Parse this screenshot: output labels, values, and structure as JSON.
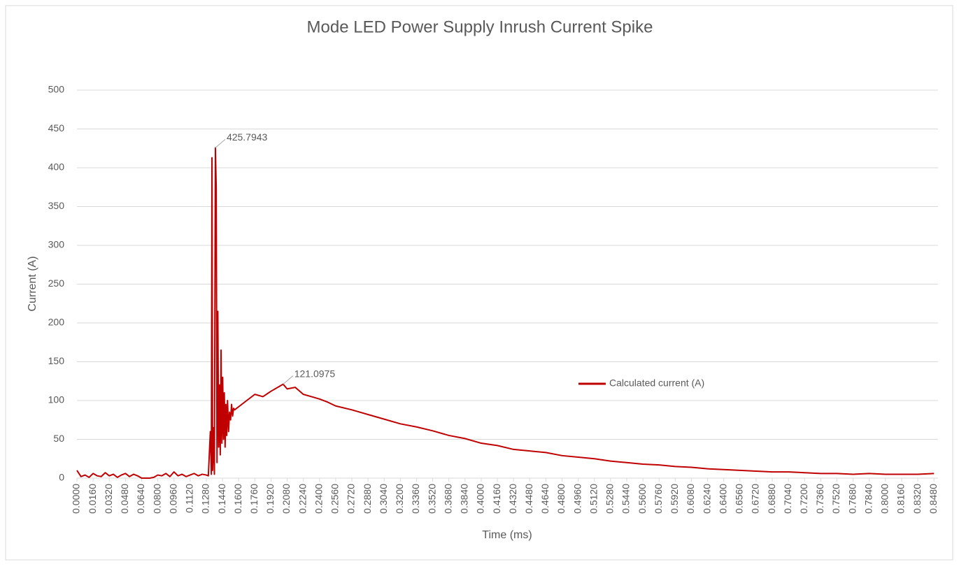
{
  "chart_data": {
    "type": "line",
    "title": "Mode LED Power Supply Inrush Current Spike",
    "x_label": "Time (ms)",
    "y_label": "Current (A)",
    "xlim": [
      0,
      0.852
    ],
    "ylim": [
      0,
      500
    ],
    "yticks": [
      0,
      50,
      100,
      150,
      200,
      250,
      300,
      350,
      400,
      450,
      500
    ],
    "xticks": [
      {
        "value": 0,
        "label": "0.0000"
      },
      {
        "value": 0.016,
        "label": "0.0160"
      },
      {
        "value": 0.032,
        "label": "0.0320"
      },
      {
        "value": 0.048,
        "label": "0.0480"
      },
      {
        "value": 0.064,
        "label": "0.0640"
      },
      {
        "value": 0.08,
        "label": "0.0800"
      },
      {
        "value": 0.096,
        "label": "0.0960"
      },
      {
        "value": 0.112,
        "label": "0.1120"
      },
      {
        "value": 0.128,
        "label": "0.1280"
      },
      {
        "value": 0.144,
        "label": "0.1440"
      },
      {
        "value": 0.16,
        "label": "0.1600"
      },
      {
        "value": 0.176,
        "label": "0.1760"
      },
      {
        "value": 0.192,
        "label": "0.1920"
      },
      {
        "value": 0.208,
        "label": "0.2080"
      },
      {
        "value": 0.224,
        "label": "0.2240"
      },
      {
        "value": 0.24,
        "label": "0.2400"
      },
      {
        "value": 0.256,
        "label": "0.2560"
      },
      {
        "value": 0.272,
        "label": "0.2720"
      },
      {
        "value": 0.288,
        "label": "0.2880"
      },
      {
        "value": 0.304,
        "label": "0.3040"
      },
      {
        "value": 0.32,
        "label": "0.3200"
      },
      {
        "value": 0.336,
        "label": "0.3360"
      },
      {
        "value": 0.352,
        "label": "0.3520"
      },
      {
        "value": 0.368,
        "label": "0.3680"
      },
      {
        "value": 0.384,
        "label": "0.3840"
      },
      {
        "value": 0.4,
        "label": "0.4000"
      },
      {
        "value": 0.416,
        "label": "0.4160"
      },
      {
        "value": 0.432,
        "label": "0.4320"
      },
      {
        "value": 0.448,
        "label": "0.4480"
      },
      {
        "value": 0.464,
        "label": "0.4640"
      },
      {
        "value": 0.48,
        "label": "0.4800"
      },
      {
        "value": 0.496,
        "label": "0.4960"
      },
      {
        "value": 0.512,
        "label": "0.5120"
      },
      {
        "value": 0.528,
        "label": "0.5280"
      },
      {
        "value": 0.544,
        "label": "0.5440"
      },
      {
        "value": 0.56,
        "label": "0.5600"
      },
      {
        "value": 0.576,
        "label": "0.5760"
      },
      {
        "value": 0.592,
        "label": "0.5920"
      },
      {
        "value": 0.608,
        "label": "0.6080"
      },
      {
        "value": 0.624,
        "label": "0.6240"
      },
      {
        "value": 0.64,
        "label": "0.6400"
      },
      {
        "value": 0.656,
        "label": "0.6560"
      },
      {
        "value": 0.672,
        "label": "0.6720"
      },
      {
        "value": 0.688,
        "label": "0.6880"
      },
      {
        "value": 0.704,
        "label": "0.7040"
      },
      {
        "value": 0.72,
        "label": "0.7200"
      },
      {
        "value": 0.736,
        "label": "0.7360"
      },
      {
        "value": 0.752,
        "label": "0.7520"
      },
      {
        "value": 0.768,
        "label": "0.7680"
      },
      {
        "value": 0.784,
        "label": "0.7840"
      },
      {
        "value": 0.8,
        "label": "0.8000"
      },
      {
        "value": 0.816,
        "label": "0.8160"
      },
      {
        "value": 0.832,
        "label": "0.8320"
      },
      {
        "value": 0.848,
        "label": "0.8480"
      }
    ],
    "grid": true,
    "legend": "right",
    "x": [
      0,
      0.004,
      0.008,
      0.012,
      0.016,
      0.02,
      0.024,
      0.028,
      0.032,
      0.036,
      0.04,
      0.044,
      0.048,
      0.052,
      0.056,
      0.06,
      0.064,
      0.068,
      0.072,
      0.076,
      0.08,
      0.084,
      0.088,
      0.092,
      0.096,
      0.1,
      0.104,
      0.108,
      0.112,
      0.116,
      0.12,
      0.124,
      0.128,
      0.13,
      0.132,
      0.133,
      0.1336,
      0.1342,
      0.135,
      0.136,
      0.137,
      0.1378,
      0.1386,
      0.1394,
      0.1402,
      0.141,
      0.1418,
      0.1426,
      0.1434,
      0.1442,
      0.145,
      0.1458,
      0.1466,
      0.1474,
      0.1482,
      0.149,
      0.15,
      0.151,
      0.152,
      0.153,
      0.154,
      0.155,
      0.156,
      0.16,
      0.168,
      0.176,
      0.184,
      0.192,
      0.2,
      0.204,
      0.208,
      0.216,
      0.224,
      0.232,
      0.24,
      0.248,
      0.256,
      0.272,
      0.288,
      0.304,
      0.32,
      0.336,
      0.352,
      0.368,
      0.384,
      0.4,
      0.416,
      0.432,
      0.448,
      0.464,
      0.48,
      0.496,
      0.512,
      0.528,
      0.544,
      0.56,
      0.576,
      0.592,
      0.608,
      0.624,
      0.64,
      0.656,
      0.672,
      0.688,
      0.704,
      0.72,
      0.736,
      0.752,
      0.768,
      0.784,
      0.8,
      0.816,
      0.832,
      0.848
    ],
    "series": [
      {
        "name": "Calculated current (A)",
        "color": "#c00000",
        "values": [
          10,
          2,
          4,
          1,
          6,
          3,
          2,
          7,
          3,
          5,
          1,
          4,
          6,
          2,
          5,
          3,
          0,
          0,
          0,
          1,
          4,
          3,
          6,
          2,
          8,
          3,
          5,
          2,
          4,
          6,
          3,
          5,
          4,
          3,
          60,
          5,
          413,
          10,
          65,
          5,
          425.7943,
          375,
          20,
          215,
          40,
          120,
          30,
          165,
          45,
          130,
          50,
          110,
          40,
          95,
          55,
          100,
          60,
          85,
          75,
          95,
          80,
          90,
          88,
          92,
          100,
          108,
          105,
          112,
          118,
          121.0975,
          115,
          117,
          108,
          105,
          102,
          98,
          93,
          88,
          82,
          76,
          70,
          66,
          61,
          55,
          51,
          45,
          42,
          37,
          35,
          33,
          29,
          27,
          25,
          22,
          20,
          18,
          17,
          15,
          14,
          12,
          11,
          10,
          9,
          8,
          8,
          7,
          6,
          6,
          5,
          6,
          5,
          5,
          5,
          6
        ]
      }
    ]
  }
}
